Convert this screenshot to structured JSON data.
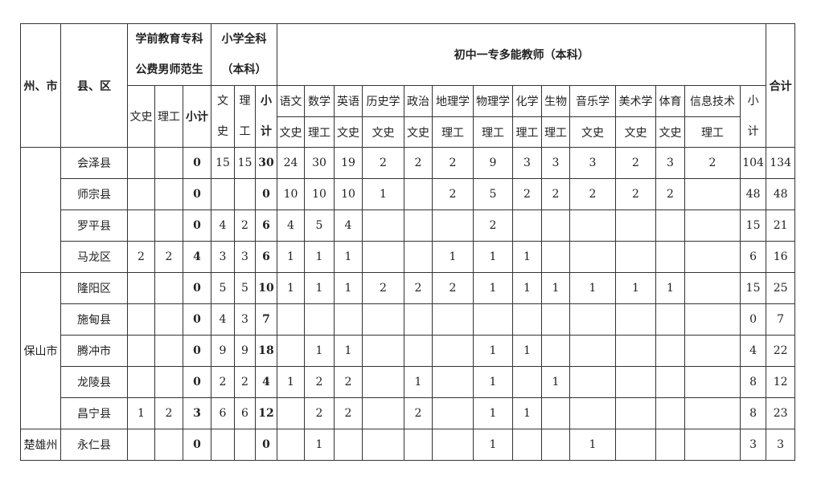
{
  "header": {
    "prefecture": "州、市",
    "county": "县、区",
    "preschool": [
      "学前教育专科",
      "公费男师范生"
    ],
    "primary": [
      "小学全科",
      "（本科）"
    ],
    "junior": "初中一专多能教师（本科）",
    "total": "合计",
    "pre_cols": [
      "文史",
      "理工",
      "小计"
    ],
    "prim_cols": [
      [
        "文",
        "史"
      ],
      [
        "理",
        "工"
      ],
      [
        "小",
        "计"
      ]
    ],
    "subjects": [
      {
        "name": "语文",
        "track": "文史"
      },
      {
        "name": "数学",
        "track": "理工"
      },
      {
        "name": "英语",
        "track": "文史"
      },
      {
        "name": "历史学",
        "track": "文史"
      },
      {
        "name": "政治",
        "track": "文史"
      },
      {
        "name": "地理学",
        "track": "理工"
      },
      {
        "name": "物理学",
        "track": "理工"
      },
      {
        "name": "化学",
        "track": "理工"
      },
      {
        "name": "生物",
        "track": "理工"
      },
      {
        "name": "音乐学",
        "track": "文史"
      },
      {
        "name": "美术学",
        "track": "文史"
      },
      {
        "name": "体育",
        "track": "文史"
      },
      {
        "name": "信息技术",
        "track": "理工"
      }
    ],
    "junior_subtotal": [
      "小",
      "计"
    ]
  },
  "groups": [
    {
      "prefecture": "",
      "rows": [
        {
          "county": "会泽县",
          "values": [
            "",
            "",
            "0",
            "15",
            "15",
            "30",
            "24",
            "30",
            "19",
            "2",
            "2",
            "2",
            "9",
            "3",
            "3",
            "3",
            "2",
            "3",
            "2",
            "104",
            "134"
          ]
        },
        {
          "county": "师宗县",
          "values": [
            "",
            "",
            "0",
            "",
            "",
            "0",
            "10",
            "10",
            "10",
            "1",
            "",
            "2",
            "5",
            "2",
            "2",
            "2",
            "2",
            "2",
            "",
            "48",
            "48"
          ]
        },
        {
          "county": "罗平县",
          "values": [
            "",
            "",
            "0",
            "4",
            "2",
            "6",
            "4",
            "5",
            "4",
            "",
            "",
            "",
            "2",
            "",
            "",
            "",
            "",
            "",
            "",
            "15",
            "21"
          ]
        },
        {
          "county": "马龙区",
          "values": [
            "2",
            "2",
            "4",
            "3",
            "3",
            "6",
            "1",
            "1",
            "1",
            "",
            "",
            "1",
            "1",
            "1",
            "",
            "",
            "",
            "",
            "",
            "6",
            "16"
          ]
        }
      ]
    },
    {
      "prefecture": "保山市",
      "rows": [
        {
          "county": "隆阳区",
          "values": [
            "",
            "",
            "0",
            "5",
            "5",
            "10",
            "1",
            "1",
            "1",
            "2",
            "2",
            "2",
            "1",
            "1",
            "1",
            "1",
            "1",
            "1",
            "",
            "15",
            "25"
          ]
        },
        {
          "county": "施甸县",
          "values": [
            "",
            "",
            "0",
            "4",
            "3",
            "7",
            "",
            "",
            "",
            "",
            "",
            "",
            "",
            "",
            "",
            "",
            "",
            "",
            "",
            "0",
            "7"
          ]
        },
        {
          "county": "腾冲市",
          "values": [
            "",
            "",
            "0",
            "9",
            "9",
            "18",
            "",
            "1",
            "1",
            "",
            "",
            "",
            "1",
            "1",
            "",
            "",
            "",
            "",
            "",
            "4",
            "22"
          ]
        },
        {
          "county": "龙陵县",
          "values": [
            "",
            "",
            "0",
            "2",
            "2",
            "4",
            "1",
            "2",
            "2",
            "",
            "1",
            "",
            "1",
            "",
            "1",
            "",
            "",
            "",
            "",
            "8",
            "12"
          ]
        },
        {
          "county": "昌宁县",
          "values": [
            "1",
            "2",
            "3",
            "6",
            "6",
            "12",
            "",
            "2",
            "2",
            "",
            "2",
            "",
            "1",
            "1",
            "",
            "",
            "",
            "",
            "",
            "8",
            "23"
          ]
        }
      ]
    },
    {
      "prefecture": "楚雄州",
      "rows": [
        {
          "county": "永仁县",
          "values": [
            "",
            "",
            "0",
            "",
            "",
            "0",
            "",
            "1",
            "",
            "",
            "",
            "",
            "1",
            "",
            "",
            "1",
            "",
            "",
            "",
            "3",
            "3"
          ]
        }
      ]
    }
  ]
}
